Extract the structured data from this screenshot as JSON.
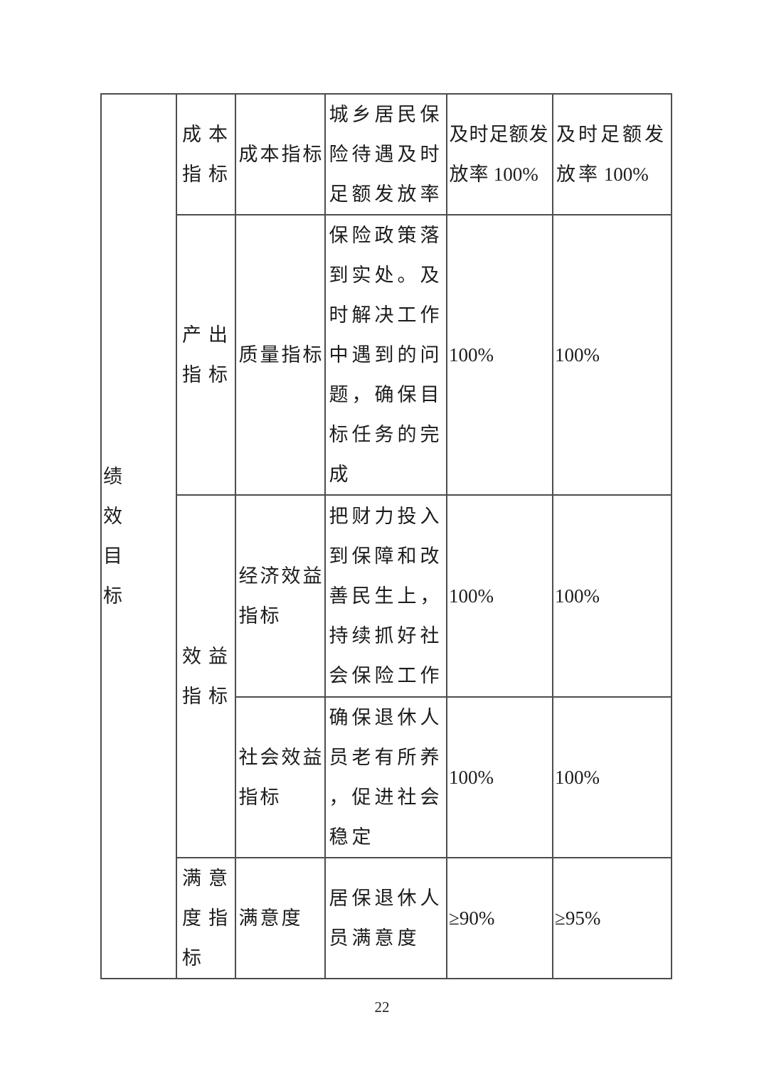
{
  "page": {
    "background": "#ffffff",
    "text_color": "#1c1c1c",
    "border_color": "#4d4d4d",
    "footer_page_number": "22"
  },
  "table": {
    "row_header": "绩效目标",
    "rows": [
      {
        "category": "成本指标",
        "indicator": "成本指标",
        "description": "城乡居民保险待遇及时足额发放率",
        "value1": "及时足额发放率 100%",
        "value2": "及时足额发放率 100%"
      },
      {
        "category": "产出指标",
        "indicator": "质量指标",
        "description": "保险政策落到实处。及时解决工作中遇到的问题，确保目标任务的完成",
        "value1": "100%",
        "value2": "100%"
      },
      {
        "category": "效益指标",
        "indicator": "经济效益指标",
        "description": "把财力投入到保障和改善民生上，持续抓好社会保险工作",
        "value1": "100%",
        "value2": "100%"
      },
      {
        "indicator": "社会效益指标",
        "description": "确保退休人员老有所养，促进社会稳定",
        "value1": "100%",
        "value2": "100%"
      },
      {
        "category": "满意度指标",
        "indicator": "满意度",
        "description": "居保退休人员满意度",
        "value1": "≥90%",
        "value2": "≥95%"
      }
    ]
  }
}
